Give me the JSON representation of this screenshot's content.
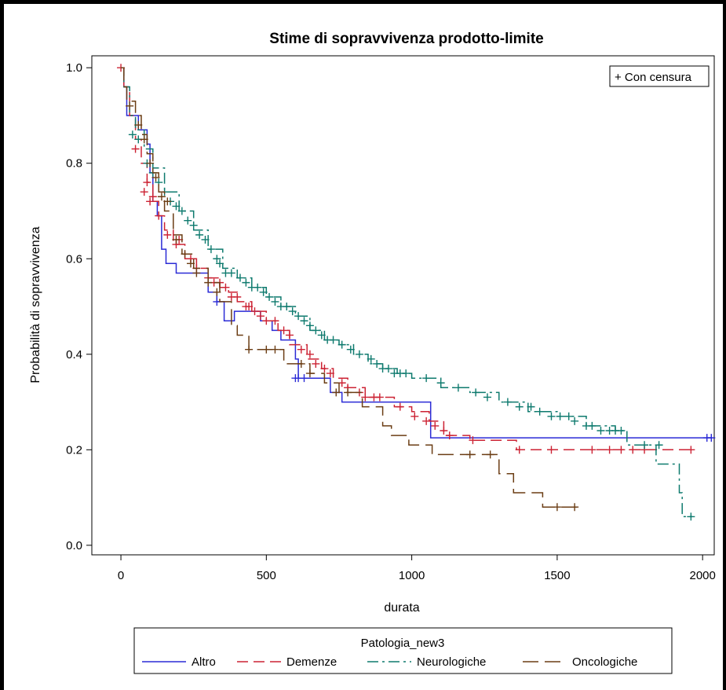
{
  "chart_data": {
    "type": "line",
    "title": "Stime di sopravvivenza prodotto-limite",
    "xlabel": "durata",
    "ylabel": "Probabilità di sopravvivenza",
    "xlim": [
      -100,
      2040
    ],
    "ylim": [
      -0.02,
      1.025
    ],
    "x_ticks": [
      0,
      500,
      1000,
      1500,
      2000
    ],
    "y_ticks": [
      "0.0",
      "0.2",
      "0.4",
      "0.6",
      "0.8",
      "1.0"
    ],
    "censor_legend": "+ Con censura",
    "legend_title": "Patologia_new3",
    "legend_placement": "bottom",
    "grid": false,
    "series": [
      {
        "name": "Altro",
        "color": "#2b2bd6",
        "dash": "solid",
        "steps": [
          [
            0,
            1.0
          ],
          [
            10,
            0.96
          ],
          [
            20,
            0.9
          ],
          [
            60,
            0.87
          ],
          [
            90,
            0.84
          ],
          [
            100,
            0.78
          ],
          [
            110,
            0.72
          ],
          [
            125,
            0.69
          ],
          [
            140,
            0.62
          ],
          [
            155,
            0.59
          ],
          [
            190,
            0.57
          ],
          [
            250,
            0.57
          ],
          [
            300,
            0.53
          ],
          [
            330,
            0.51
          ],
          [
            355,
            0.47
          ],
          [
            380,
            0.47
          ],
          [
            390,
            0.49
          ],
          [
            470,
            0.49
          ],
          [
            480,
            0.47
          ],
          [
            520,
            0.45
          ],
          [
            550,
            0.43
          ],
          [
            590,
            0.43
          ],
          [
            600,
            0.39
          ],
          [
            610,
            0.35
          ],
          [
            720,
            0.32
          ],
          [
            750,
            0.32
          ],
          [
            760,
            0.3
          ],
          [
            1060,
            0.3
          ],
          [
            1065,
            0.225
          ],
          [
            2030,
            0.225
          ]
        ],
        "censored": [
          [
            330,
            0.51
          ],
          [
            600,
            0.35
          ],
          [
            610,
            0.35
          ],
          [
            630,
            0.35
          ],
          [
            2015,
            0.225
          ],
          [
            2030,
            0.225
          ]
        ]
      },
      {
        "name": "Demenze",
        "color": "#cc2233",
        "dash": "dashed",
        "steps": [
          [
            0,
            1.0
          ],
          [
            10,
            0.96
          ],
          [
            30,
            0.9
          ],
          [
            50,
            0.85
          ],
          [
            70,
            0.8
          ],
          [
            90,
            0.76
          ],
          [
            110,
            0.72
          ],
          [
            130,
            0.69
          ],
          [
            150,
            0.66
          ],
          [
            180,
            0.63
          ],
          [
            220,
            0.6
          ],
          [
            260,
            0.58
          ],
          [
            300,
            0.56
          ],
          [
            340,
            0.54
          ],
          [
            370,
            0.53
          ],
          [
            400,
            0.51
          ],
          [
            450,
            0.49
          ],
          [
            500,
            0.47
          ],
          [
            540,
            0.45
          ],
          [
            580,
            0.42
          ],
          [
            640,
            0.39
          ],
          [
            690,
            0.37
          ],
          [
            730,
            0.35
          ],
          [
            780,
            0.33
          ],
          [
            840,
            0.31
          ],
          [
            940,
            0.29
          ],
          [
            1000,
            0.28
          ],
          [
            1060,
            0.26
          ],
          [
            1110,
            0.23
          ],
          [
            1200,
            0.22
          ],
          [
            1360,
            0.2
          ],
          [
            1970,
            0.2
          ]
        ],
        "censored": [
          [
            0,
            1.0
          ],
          [
            50,
            0.83
          ],
          [
            80,
            0.74
          ],
          [
            90,
            0.76
          ],
          [
            100,
            0.72
          ],
          [
            110,
            0.73
          ],
          [
            130,
            0.69
          ],
          [
            160,
            0.65
          ],
          [
            190,
            0.63
          ],
          [
            200,
            0.64
          ],
          [
            240,
            0.6
          ],
          [
            260,
            0.58
          ],
          [
            300,
            0.56
          ],
          [
            320,
            0.55
          ],
          [
            340,
            0.55
          ],
          [
            360,
            0.54
          ],
          [
            380,
            0.52
          ],
          [
            400,
            0.52
          ],
          [
            430,
            0.5
          ],
          [
            440,
            0.5
          ],
          [
            460,
            0.49
          ],
          [
            480,
            0.48
          ],
          [
            500,
            0.47
          ],
          [
            530,
            0.47
          ],
          [
            560,
            0.45
          ],
          [
            580,
            0.44
          ],
          [
            620,
            0.41
          ],
          [
            650,
            0.4
          ],
          [
            670,
            0.38
          ],
          [
            700,
            0.37
          ],
          [
            720,
            0.36
          ],
          [
            760,
            0.34
          ],
          [
            780,
            0.33
          ],
          [
            820,
            0.32
          ],
          [
            840,
            0.31
          ],
          [
            870,
            0.31
          ],
          [
            890,
            0.31
          ],
          [
            960,
            0.29
          ],
          [
            1010,
            0.27
          ],
          [
            1050,
            0.26
          ],
          [
            1080,
            0.25
          ],
          [
            1110,
            0.24
          ],
          [
            1130,
            0.23
          ],
          [
            1210,
            0.22
          ],
          [
            1370,
            0.2
          ],
          [
            1480,
            0.2
          ],
          [
            1620,
            0.2
          ],
          [
            1680,
            0.2
          ],
          [
            1720,
            0.2
          ],
          [
            1760,
            0.2
          ],
          [
            1800,
            0.2
          ],
          [
            1960,
            0.2
          ]
        ]
      },
      {
        "name": "Neurologiche",
        "color": "#0e7a6e",
        "dash": "dashdot",
        "steps": [
          [
            0,
            1.0
          ],
          [
            10,
            0.96
          ],
          [
            30,
            0.9
          ],
          [
            50,
            0.87
          ],
          [
            80,
            0.83
          ],
          [
            110,
            0.79
          ],
          [
            150,
            0.74
          ],
          [
            200,
            0.7
          ],
          [
            250,
            0.66
          ],
          [
            300,
            0.62
          ],
          [
            350,
            0.58
          ],
          [
            400,
            0.56
          ],
          [
            450,
            0.54
          ],
          [
            500,
            0.52
          ],
          [
            550,
            0.5
          ],
          [
            600,
            0.48
          ],
          [
            650,
            0.45
          ],
          [
            700,
            0.43
          ],
          [
            750,
            0.42
          ],
          [
            800,
            0.4
          ],
          [
            850,
            0.38
          ],
          [
            900,
            0.37
          ],
          [
            950,
            0.36
          ],
          [
            1000,
            0.35
          ],
          [
            1100,
            0.33
          ],
          [
            1200,
            0.32
          ],
          [
            1300,
            0.3
          ],
          [
            1400,
            0.28
          ],
          [
            1500,
            0.27
          ],
          [
            1600,
            0.25
          ],
          [
            1700,
            0.24
          ],
          [
            1730,
            0.24
          ],
          [
            1740,
            0.21
          ],
          [
            1820,
            0.21
          ],
          [
            1840,
            0.17
          ],
          [
            1910,
            0.17
          ],
          [
            1920,
            0.11
          ],
          [
            1930,
            0.06
          ],
          [
            1965,
            0.06
          ]
        ],
        "censored": [
          [
            40,
            0.86
          ],
          [
            60,
            0.85
          ],
          [
            90,
            0.8
          ],
          [
            110,
            0.78
          ],
          [
            130,
            0.76
          ],
          [
            150,
            0.74
          ],
          [
            170,
            0.72
          ],
          [
            190,
            0.71
          ],
          [
            210,
            0.7
          ],
          [
            230,
            0.68
          ],
          [
            250,
            0.67
          ],
          [
            270,
            0.65
          ],
          [
            290,
            0.64
          ],
          [
            310,
            0.62
          ],
          [
            330,
            0.6
          ],
          [
            340,
            0.59
          ],
          [
            360,
            0.57
          ],
          [
            380,
            0.57
          ],
          [
            410,
            0.56
          ],
          [
            430,
            0.55
          ],
          [
            450,
            0.54
          ],
          [
            470,
            0.54
          ],
          [
            490,
            0.53
          ],
          [
            510,
            0.52
          ],
          [
            530,
            0.51
          ],
          [
            550,
            0.5
          ],
          [
            570,
            0.5
          ],
          [
            590,
            0.49
          ],
          [
            610,
            0.48
          ],
          [
            630,
            0.47
          ],
          [
            650,
            0.46
          ],
          [
            670,
            0.45
          ],
          [
            690,
            0.44
          ],
          [
            710,
            0.43
          ],
          [
            730,
            0.43
          ],
          [
            760,
            0.42
          ],
          [
            790,
            0.41
          ],
          [
            820,
            0.4
          ],
          [
            860,
            0.39
          ],
          [
            880,
            0.38
          ],
          [
            900,
            0.37
          ],
          [
            920,
            0.37
          ],
          [
            940,
            0.36
          ],
          [
            960,
            0.36
          ],
          [
            980,
            0.36
          ],
          [
            1050,
            0.35
          ],
          [
            1100,
            0.34
          ],
          [
            1160,
            0.33
          ],
          [
            1220,
            0.32
          ],
          [
            1260,
            0.31
          ],
          [
            1330,
            0.3
          ],
          [
            1370,
            0.29
          ],
          [
            1410,
            0.29
          ],
          [
            1440,
            0.28
          ],
          [
            1480,
            0.27
          ],
          [
            1510,
            0.27
          ],
          [
            1540,
            0.27
          ],
          [
            1560,
            0.26
          ],
          [
            1600,
            0.25
          ],
          [
            1620,
            0.25
          ],
          [
            1650,
            0.24
          ],
          [
            1680,
            0.24
          ],
          [
            1700,
            0.24
          ],
          [
            1720,
            0.24
          ],
          [
            1800,
            0.21
          ],
          [
            1850,
            0.21
          ],
          [
            1960,
            0.06
          ]
        ]
      },
      {
        "name": "Oncologiche",
        "color": "#6b3d14",
        "dash": "longdash",
        "steps": [
          [
            0,
            1.0
          ],
          [
            10,
            0.96
          ],
          [
            20,
            0.93
          ],
          [
            50,
            0.9
          ],
          [
            70,
            0.86
          ],
          [
            90,
            0.82
          ],
          [
            110,
            0.78
          ],
          [
            130,
            0.74
          ],
          [
            150,
            0.7
          ],
          [
            180,
            0.65
          ],
          [
            210,
            0.61
          ],
          [
            250,
            0.58
          ],
          [
            300,
            0.55
          ],
          [
            340,
            0.51
          ],
          [
            380,
            0.46
          ],
          [
            400,
            0.44
          ],
          [
            440,
            0.41
          ],
          [
            530,
            0.41
          ],
          [
            560,
            0.38
          ],
          [
            630,
            0.38
          ],
          [
            650,
            0.36
          ],
          [
            700,
            0.34
          ],
          [
            750,
            0.32
          ],
          [
            830,
            0.29
          ],
          [
            900,
            0.25
          ],
          [
            930,
            0.23
          ],
          [
            990,
            0.21
          ],
          [
            1070,
            0.19
          ],
          [
            1240,
            0.19
          ],
          [
            1300,
            0.15
          ],
          [
            1350,
            0.11
          ],
          [
            1450,
            0.08
          ],
          [
            1570,
            0.08
          ]
        ],
        "censored": [
          [
            30,
            0.92
          ],
          [
            60,
            0.88
          ],
          [
            80,
            0.85
          ],
          [
            100,
            0.8
          ],
          [
            120,
            0.77
          ],
          [
            140,
            0.73
          ],
          [
            160,
            0.72
          ],
          [
            190,
            0.64
          ],
          [
            220,
            0.61
          ],
          [
            240,
            0.59
          ],
          [
            260,
            0.57
          ],
          [
            300,
            0.55
          ],
          [
            330,
            0.53
          ],
          [
            440,
            0.41
          ],
          [
            500,
            0.41
          ],
          [
            530,
            0.41
          ],
          [
            620,
            0.38
          ],
          [
            650,
            0.36
          ],
          [
            740,
            0.32
          ],
          [
            780,
            0.32
          ],
          [
            1200,
            0.19
          ],
          [
            1270,
            0.19
          ],
          [
            1500,
            0.08
          ],
          [
            1560,
            0.08
          ]
        ]
      }
    ]
  }
}
